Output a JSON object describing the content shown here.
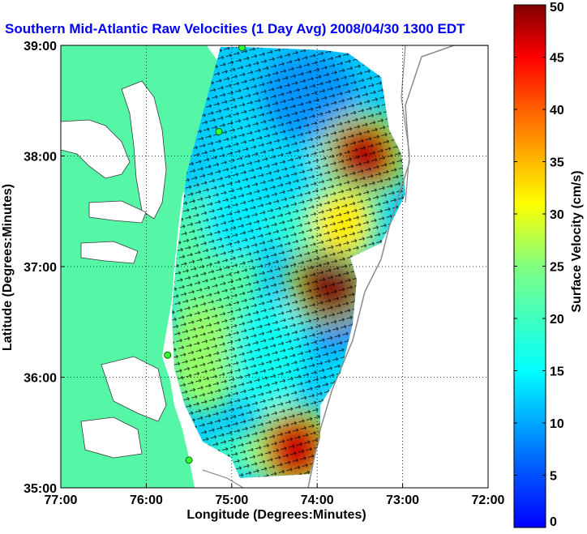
{
  "chart_data": {
    "type": "heatmap",
    "title": "Southern Mid-Atlantic Raw Velocities (1 Day Avg) 2008/04/30 1300 EDT",
    "xlabel": "Longitude (Degrees:Minutes)",
    "ylabel": "Latitude (Degrees:Minutes)",
    "xlim": [
      -77,
      -72
    ],
    "ylim": [
      35,
      39
    ],
    "x_ticks": [
      {
        "value": -77,
        "label": "77:00"
      },
      {
        "value": -76,
        "label": "76:00"
      },
      {
        "value": -75,
        "label": "75:00"
      },
      {
        "value": -74,
        "label": "74:00"
      },
      {
        "value": -73,
        "label": "73:00"
      },
      {
        "value": -72,
        "label": "72:00"
      }
    ],
    "y_ticks": [
      {
        "value": 35,
        "label": "35:00"
      },
      {
        "value": 36,
        "label": "36:00"
      },
      {
        "value": 37,
        "label": "37:00"
      },
      {
        "value": 38,
        "label": "38:00"
      },
      {
        "value": 39,
        "label": "39:00"
      }
    ],
    "grid": true,
    "grid_style": "dotted",
    "colorbar": {
      "label": "Surface Velocity (cm/s)",
      "min": 0,
      "max": 50,
      "ticks": [
        0,
        5,
        10,
        15,
        20,
        25,
        30,
        35,
        40,
        45,
        50
      ],
      "colormap": "jet"
    },
    "land_color": "#55f7a7",
    "high_velocity_regions": [
      {
        "lon": -73.45,
        "lat": 38.0,
        "speed": 48
      },
      {
        "lon": -73.85,
        "lat": 36.85,
        "speed": 50
      },
      {
        "lon": -74.25,
        "lat": 35.35,
        "speed": 47
      },
      {
        "lon": -73.7,
        "lat": 37.4,
        "speed": 32
      }
    ],
    "stations": [
      {
        "lon": -74.88,
        "lat": 38.98
      },
      {
        "lon": -75.15,
        "lat": 38.22
      },
      {
        "lon": -75.75,
        "lat": 36.2
      },
      {
        "lon": -75.5,
        "lat": 35.25
      }
    ]
  }
}
